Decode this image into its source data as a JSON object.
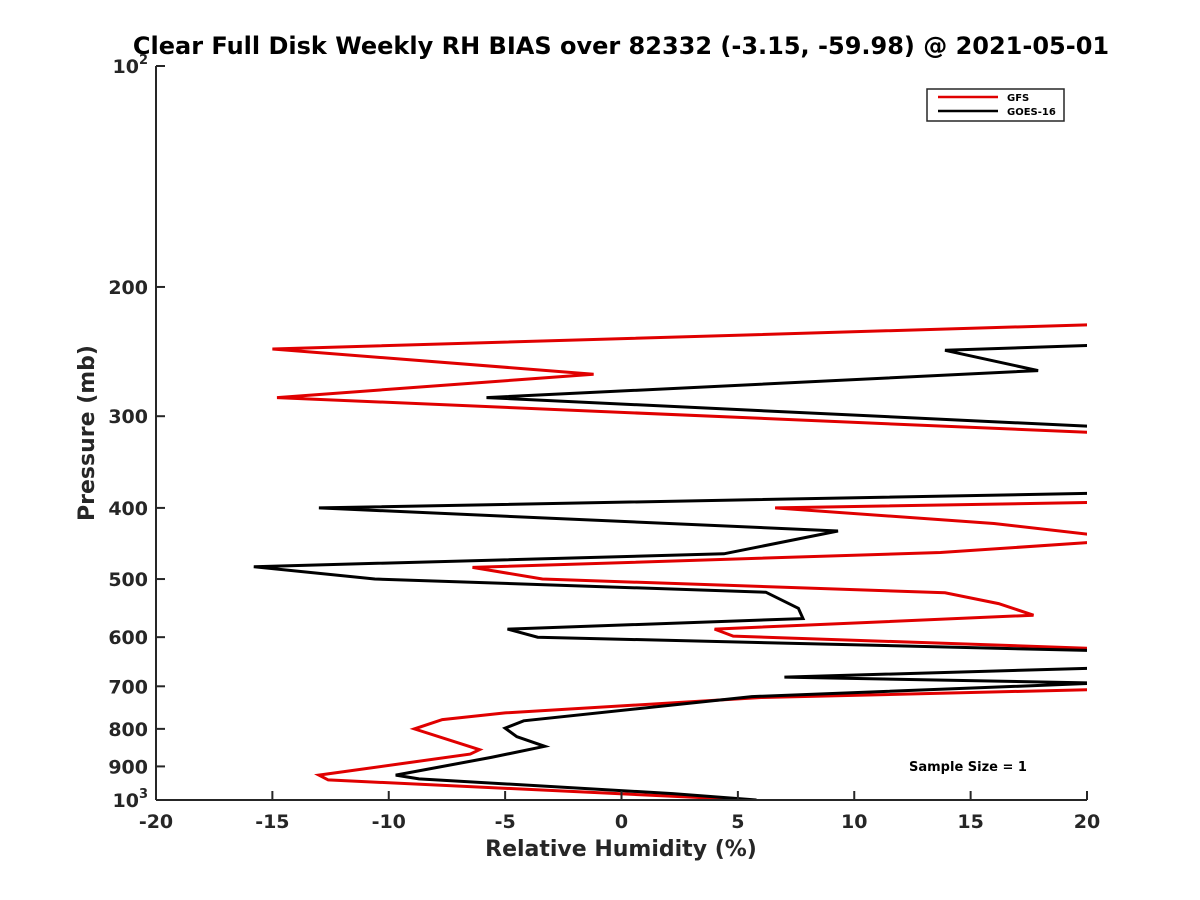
{
  "chart_data": {
    "type": "line",
    "title": "Clear Full Disk Weekly RH BIAS over 82332 (-3.15, -59.98) @ 2021-05-01",
    "xlabel": "Relative Humidity (%)",
    "ylabel": "Pressure (mb)",
    "xlim": [
      -20,
      20
    ],
    "ylim": [
      100,
      1000
    ],
    "yscale": "log",
    "y_reversed": true,
    "xticks": [
      -20,
      -15,
      -10,
      -5,
      0,
      5,
      10,
      15,
      20
    ],
    "yticks": [
      {
        "value": 100,
        "label": "10",
        "sup": "2"
      },
      {
        "value": 200,
        "label": "200",
        "sup": ""
      },
      {
        "value": 300,
        "label": "300",
        "sup": ""
      },
      {
        "value": 400,
        "label": "400",
        "sup": ""
      },
      {
        "value": 500,
        "label": "500",
        "sup": ""
      },
      {
        "value": 600,
        "label": "600",
        "sup": ""
      },
      {
        "value": 700,
        "label": "700",
        "sup": ""
      },
      {
        "value": 800,
        "label": "800",
        "sup": ""
      },
      {
        "value": 900,
        "label": "900",
        "sup": ""
      },
      {
        "value": 1000,
        "label": "10",
        "sup": "3"
      }
    ],
    "legend_position": "top-right",
    "annotation": "Sample Size = 1",
    "series": [
      {
        "name": "GFS",
        "color": "#e00000",
        "points": [
          [
            20.5,
            225
          ],
          [
            -15,
            243
          ],
          [
            -1.2,
            263
          ],
          [
            -14.8,
            283
          ],
          [
            20.5,
            316
          ],
          [
            20.5,
            393
          ],
          [
            6.6,
            400
          ],
          [
            16,
            420
          ],
          [
            20.5,
            436
          ],
          [
            20.5,
            445
          ],
          [
            13.7,
            460
          ],
          [
            -6.4,
            482
          ],
          [
            -3.4,
            500
          ],
          [
            13.9,
            522
          ],
          [
            16.2,
            540
          ],
          [
            17.7,
            560
          ],
          [
            4,
            585
          ],
          [
            4.8,
            598
          ],
          [
            20.5,
            622
          ],
          [
            20.5,
            695
          ],
          [
            20.5,
            707
          ],
          [
            6,
            725
          ],
          [
            -5,
            761
          ],
          [
            -7.7,
            777
          ],
          [
            -8.9,
            800
          ],
          [
            -6.1,
            854
          ],
          [
            -6.5,
            866
          ],
          [
            -13,
            925
          ],
          [
            -12.6,
            939
          ],
          [
            5.6,
            1000
          ]
        ]
      },
      {
        "name": "GOES-16",
        "color": "#000000",
        "points": [
          [
            20.5,
            240
          ],
          [
            13.9,
            244
          ],
          [
            17.9,
            260
          ],
          [
            -5.8,
            283
          ],
          [
            20.5,
            310
          ],
          [
            20.5,
            382
          ],
          [
            -13,
            400
          ],
          [
            9.3,
            430
          ],
          [
            4.4,
            462
          ],
          [
            -15.8,
            481
          ],
          [
            -10.6,
            500
          ],
          [
            6.2,
            521
          ],
          [
            7.6,
            548
          ],
          [
            7.8,
            566
          ],
          [
            -4.9,
            585
          ],
          [
            -3.6,
            600
          ],
          [
            20.5,
            626
          ],
          [
            20.5,
            661
          ],
          [
            7,
            680
          ],
          [
            20.5,
            693
          ],
          [
            5.6,
            723
          ],
          [
            -4.2,
            780
          ],
          [
            -5,
            798
          ],
          [
            -4.5,
            820
          ],
          [
            -3.3,
            845
          ],
          [
            -5.6,
            875
          ],
          [
            -9.7,
            925
          ],
          [
            -8.7,
            936
          ],
          [
            2.2,
            980
          ],
          [
            5.8,
            1000
          ]
        ]
      }
    ]
  }
}
